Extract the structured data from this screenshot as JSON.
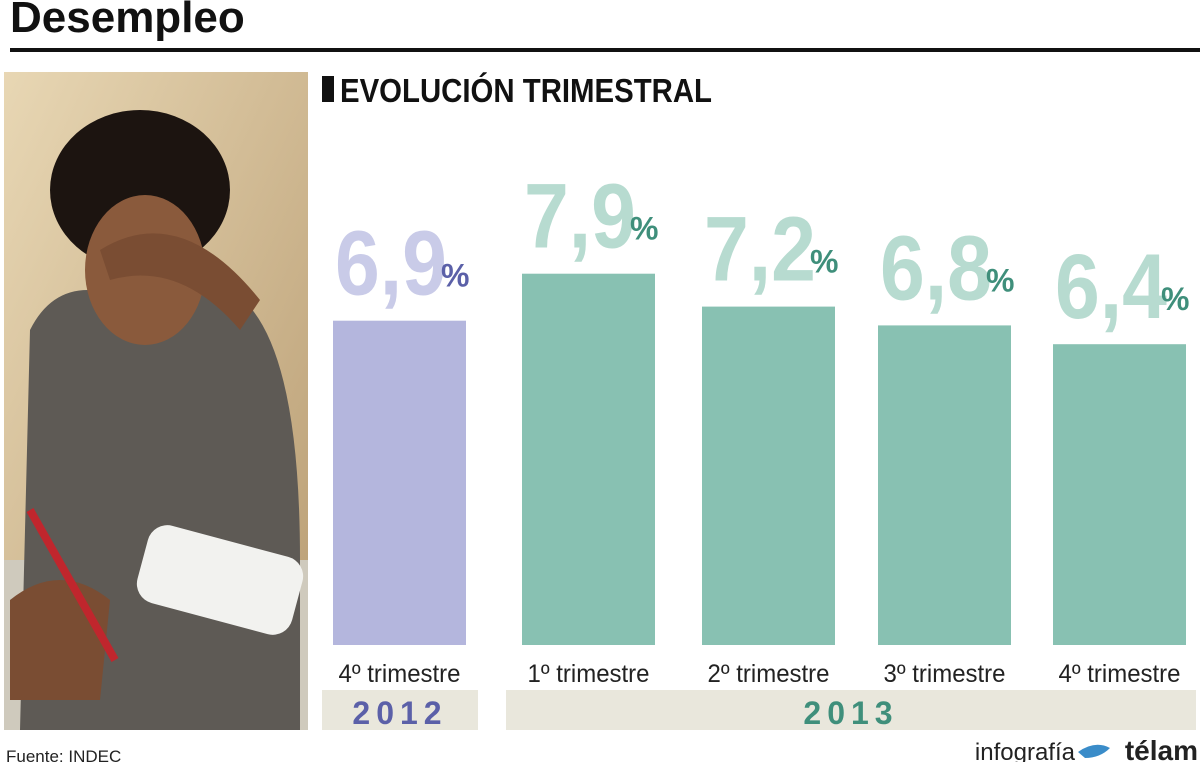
{
  "chart_data": {
    "type": "bar",
    "title": "Desempleo",
    "subtitle": "EVOLUCIÓN TRIMESTRAL",
    "categories": [
      "4º trimestre",
      "1º trimestre",
      "2º trimestre",
      "3º trimestre",
      "4º trimestre"
    ],
    "values": [
      6.9,
      7.9,
      7.2,
      6.8,
      6.4
    ],
    "value_labels": [
      "6,9",
      "7,9",
      "7,2",
      "6,8",
      "6,4"
    ],
    "unit": "%",
    "colors": [
      "#b4b6dd",
      "#88c1b2",
      "#88c1b2",
      "#88c1b2",
      "#88c1b2"
    ],
    "label_colors": [
      "#c9cbe8",
      "#b7dbd0",
      "#b7dbd0",
      "#b7dbd0",
      "#b7dbd0"
    ],
    "unit_colors": [
      "#5b60a8",
      "#3f8f7b",
      "#3f8f7b",
      "#3f8f7b",
      "#3f8f7b"
    ],
    "groups": [
      "2012",
      "2013"
    ],
    "group_colors": [
      "#5b60a8",
      "#3f8f7b"
    ],
    "source": "Fuente: INDEC",
    "credit": "infografía",
    "brand": "télam"
  }
}
